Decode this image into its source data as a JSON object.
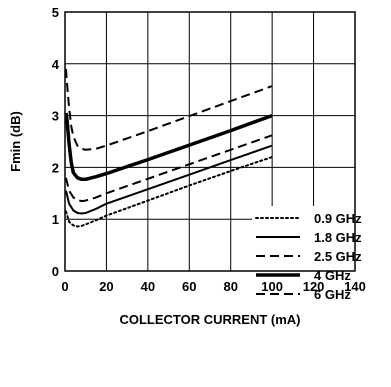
{
  "chart_data": {
    "type": "line",
    "title": "",
    "xlabel": "COLLECTOR CURRENT (mA)",
    "ylabel": "Fmin (dB)",
    "xlim": [
      0,
      140
    ],
    "ylim": [
      0,
      5
    ],
    "x_ticks": [
      "0",
      "20",
      "40",
      "60",
      "80",
      "100",
      "120",
      "140"
    ],
    "y_ticks": [
      "0",
      "1",
      "2",
      "3",
      "4",
      "5"
    ],
    "grid": true,
    "legend_position": "bottom-right",
    "series": [
      {
        "name": "0.9 GHz",
        "style": "dotted",
        "points": [
          [
            0.5,
            1.15
          ],
          [
            2,
            0.95
          ],
          [
            4,
            0.88
          ],
          [
            6,
            0.86
          ],
          [
            8,
            0.87
          ],
          [
            10,
            0.9
          ],
          [
            15,
            0.98
          ],
          [
            20,
            1.07
          ],
          [
            40,
            1.36
          ],
          [
            60,
            1.65
          ],
          [
            80,
            1.93
          ],
          [
            100,
            2.2
          ]
        ]
      },
      {
        "name": "1.8 GHz",
        "style": "solid",
        "points": [
          [
            0.5,
            1.55
          ],
          [
            2,
            1.3
          ],
          [
            4,
            1.17
          ],
          [
            6,
            1.12
          ],
          [
            8,
            1.11
          ],
          [
            10,
            1.12
          ],
          [
            15,
            1.2
          ],
          [
            20,
            1.3
          ],
          [
            40,
            1.58
          ],
          [
            60,
            1.86
          ],
          [
            80,
            2.14
          ],
          [
            100,
            2.42
          ]
        ]
      },
      {
        "name": "2.5 GHz",
        "style": "dashed",
        "points": [
          [
            0.5,
            1.8
          ],
          [
            2,
            1.55
          ],
          [
            4,
            1.42
          ],
          [
            6,
            1.37
          ],
          [
            8,
            1.35
          ],
          [
            10,
            1.36
          ],
          [
            15,
            1.42
          ],
          [
            20,
            1.5
          ],
          [
            40,
            1.78
          ],
          [
            60,
            2.06
          ],
          [
            80,
            2.34
          ],
          [
            100,
            2.62
          ]
        ]
      },
      {
        "name": "4 GHz",
        "style": "thick",
        "points": [
          [
            0.5,
            3.05
          ],
          [
            1,
            2.9
          ],
          [
            2,
            2.45
          ],
          [
            3,
            2.1
          ],
          [
            4,
            1.9
          ],
          [
            6,
            1.8
          ],
          [
            8,
            1.77
          ],
          [
            10,
            1.77
          ],
          [
            15,
            1.82
          ],
          [
            20,
            1.88
          ],
          [
            40,
            2.15
          ],
          [
            60,
            2.43
          ],
          [
            80,
            2.71
          ],
          [
            100,
            3.0
          ]
        ]
      },
      {
        "name": "6 GHz",
        "style": "dashed",
        "points": [
          [
            0.5,
            3.9
          ],
          [
            1,
            3.6
          ],
          [
            2,
            3.15
          ],
          [
            3,
            2.8
          ],
          [
            4,
            2.6
          ],
          [
            6,
            2.42
          ],
          [
            8,
            2.36
          ],
          [
            10,
            2.34
          ],
          [
            15,
            2.36
          ],
          [
            20,
            2.42
          ],
          [
            40,
            2.7
          ],
          [
            60,
            2.99
          ],
          [
            80,
            3.28
          ],
          [
            100,
            3.57
          ]
        ]
      }
    ]
  }
}
